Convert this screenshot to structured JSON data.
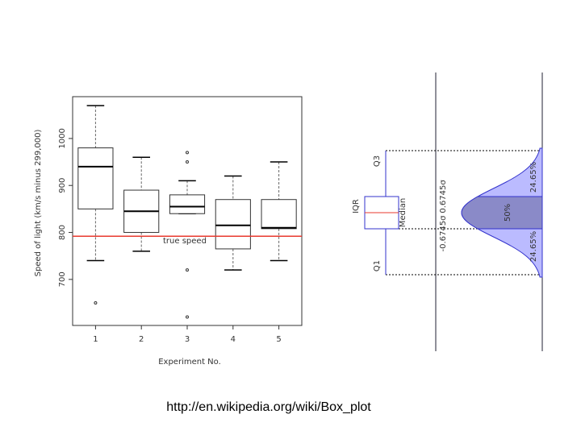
{
  "chart_data": {
    "type": "box",
    "y_label": "Speed of light (km/s minus 299,000)",
    "x_label": "Experiment No.",
    "categories": [
      "1",
      "2",
      "3",
      "4",
      "5"
    ],
    "boxes": [
      {
        "min": 740,
        "q1": 850,
        "median": 940,
        "q3": 980,
        "max": 1070,
        "outliers": [
          650
        ]
      },
      {
        "min": 760,
        "q1": 800,
        "median": 845,
        "q3": 890,
        "max": 960,
        "outliers": []
      },
      {
        "min": 840,
        "q1": 840,
        "median": 855,
        "q3": 880,
        "max": 910,
        "outliers": [
          970,
          950,
          720,
          620
        ]
      },
      {
        "min": 720,
        "q1": 765,
        "median": 815,
        "q3": 870,
        "max": 920,
        "outliers": []
      },
      {
        "min": 740,
        "q1": 808,
        "median": 810,
        "q3": 870,
        "max": 950,
        "outliers": []
      }
    ],
    "reference_line": {
      "value": 792,
      "label": "true speed",
      "color": "#e8392f"
    },
    "ylim": [
      602,
      1089
    ],
    "yticks": [
      700,
      800,
      900,
      1000
    ]
  },
  "diagram": {
    "labels": [
      "IQR",
      "Q1",
      "Q3",
      "Median",
      "50%",
      "24.65%",
      "24.65%",
      "0.6745σ",
      "-0.6745σ"
    ]
  },
  "caption": "http://en.wikipedia.org/wiki/Box_plot"
}
